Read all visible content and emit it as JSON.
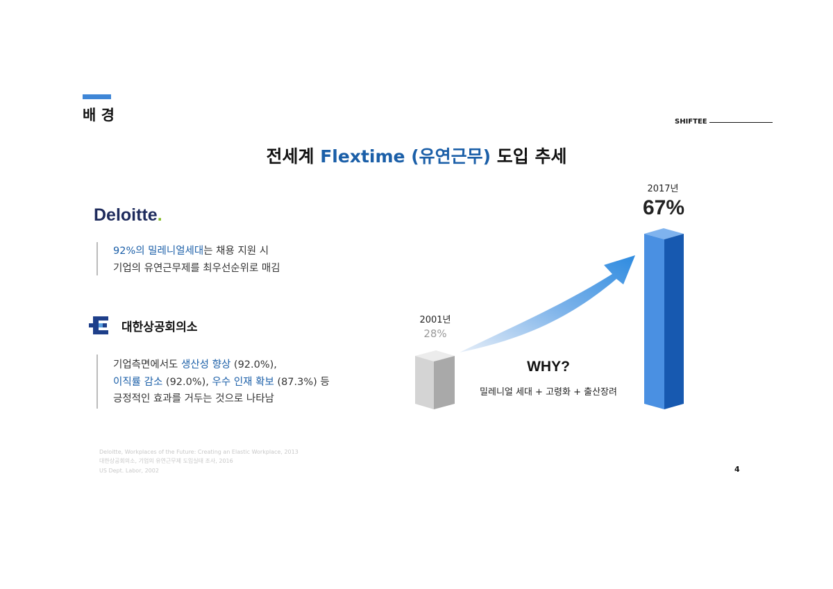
{
  "header": {
    "section": "배 경",
    "brand": "SHIFTEE",
    "title": [
      "전세계 ",
      "Flextime (유연근무)",
      " 도입 추세"
    ]
  },
  "sources": [
    {
      "logo": [
        "Deloitte",
        "."
      ],
      "lines": [
        [
          "92%의 밀레니얼세대",
          "는 채용 지원 시"
        ],
        [
          "기업의 유연근무제를 최우선순위로 매김"
        ]
      ]
    },
    {
      "logo": [
        "대한상공회의소"
      ],
      "lines": [
        [
          "기업측면에서도 ",
          "생산성 향상",
          " (92.0%),"
        ],
        [
          "이직률 감소",
          " (92.0%), ",
          "우수 인재 확보",
          " (87.3%) 등"
        ],
        [
          "긍정적인 효과를 거두는 것으로 나타남"
        ]
      ]
    }
  ],
  "trend": {
    "start": {
      "year": "2001년",
      "value": "28%"
    },
    "end": {
      "year": "2017년",
      "value": "67%"
    },
    "why": "WHY?",
    "reasons": "밀레니얼 세대 + 고령화 + 출산장려"
  },
  "footnotes": [
    "Deloitte, Workplaces of the Future: Creating an Elastic Workplace, 2013",
    "대한상공회의소, 기업의 유연근무제 도입실태 조사, 2016",
    "US Dept. Labor, 2002"
  ],
  "page_number": "4"
}
